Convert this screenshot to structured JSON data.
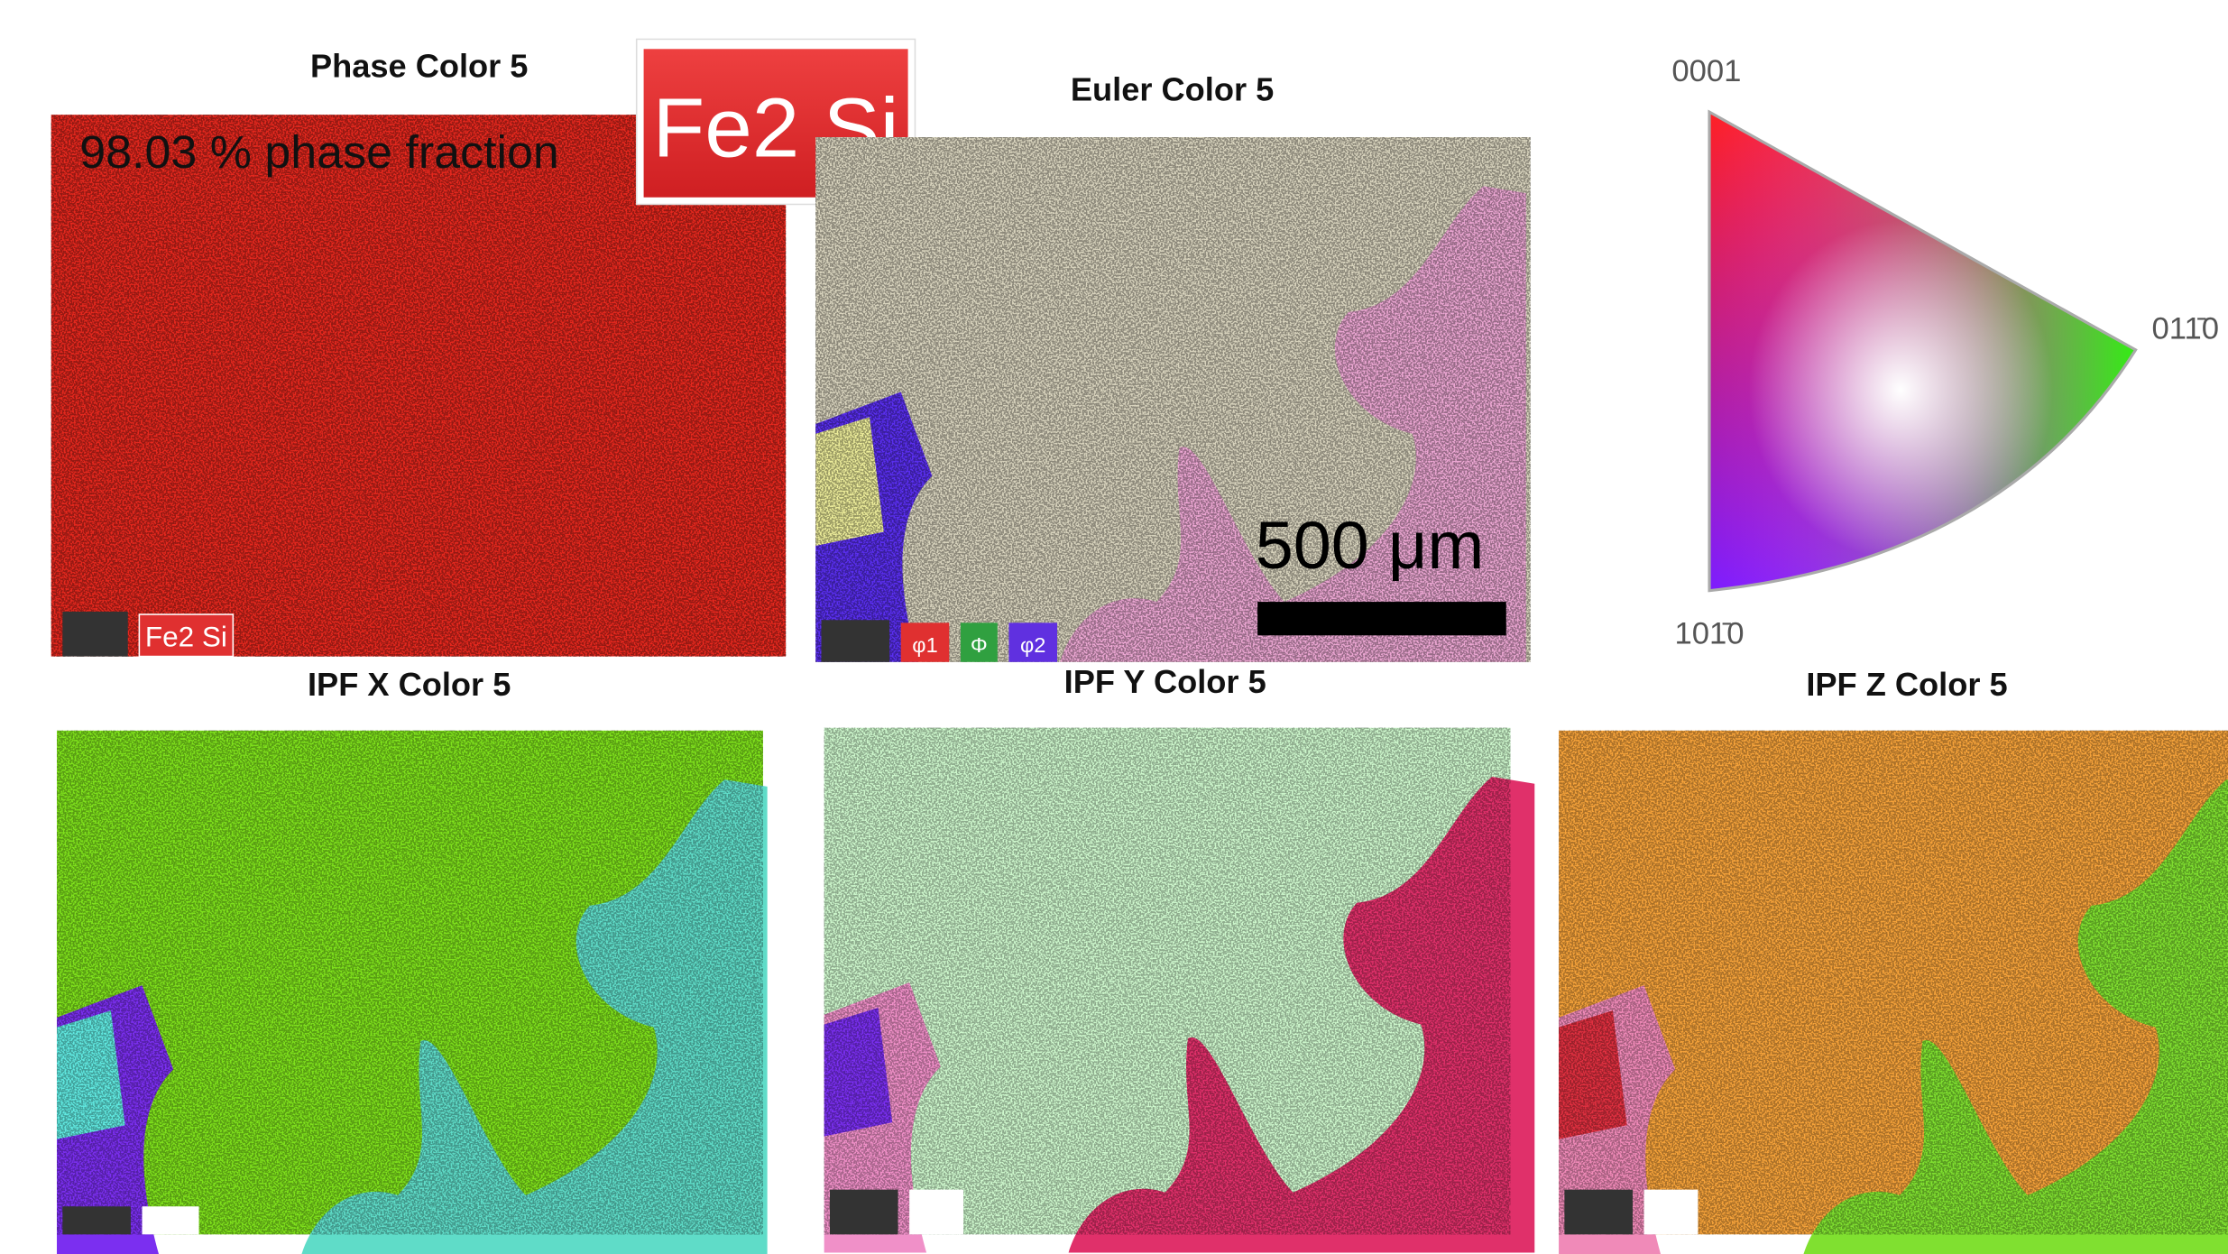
{
  "panels": [
    {
      "title": "Phase Color 5",
      "annotation": "98.03 % phase fraction",
      "tag": "Fe2 Si"
    },
    {
      "title": "Euler Color 5",
      "scale_bar": "500 μm",
      "tags": [
        "φ1",
        "Φ",
        "φ2"
      ]
    },
    {
      "title": "IPF X Color 5"
    },
    {
      "title": "IPF Y Color 5"
    },
    {
      "title": "IPF Z Color 5"
    }
  ],
  "phase_label": "Fe2 Si",
  "legend": {
    "top": "0001",
    "right": "011̄0",
    "bottom": "101̄0"
  }
}
